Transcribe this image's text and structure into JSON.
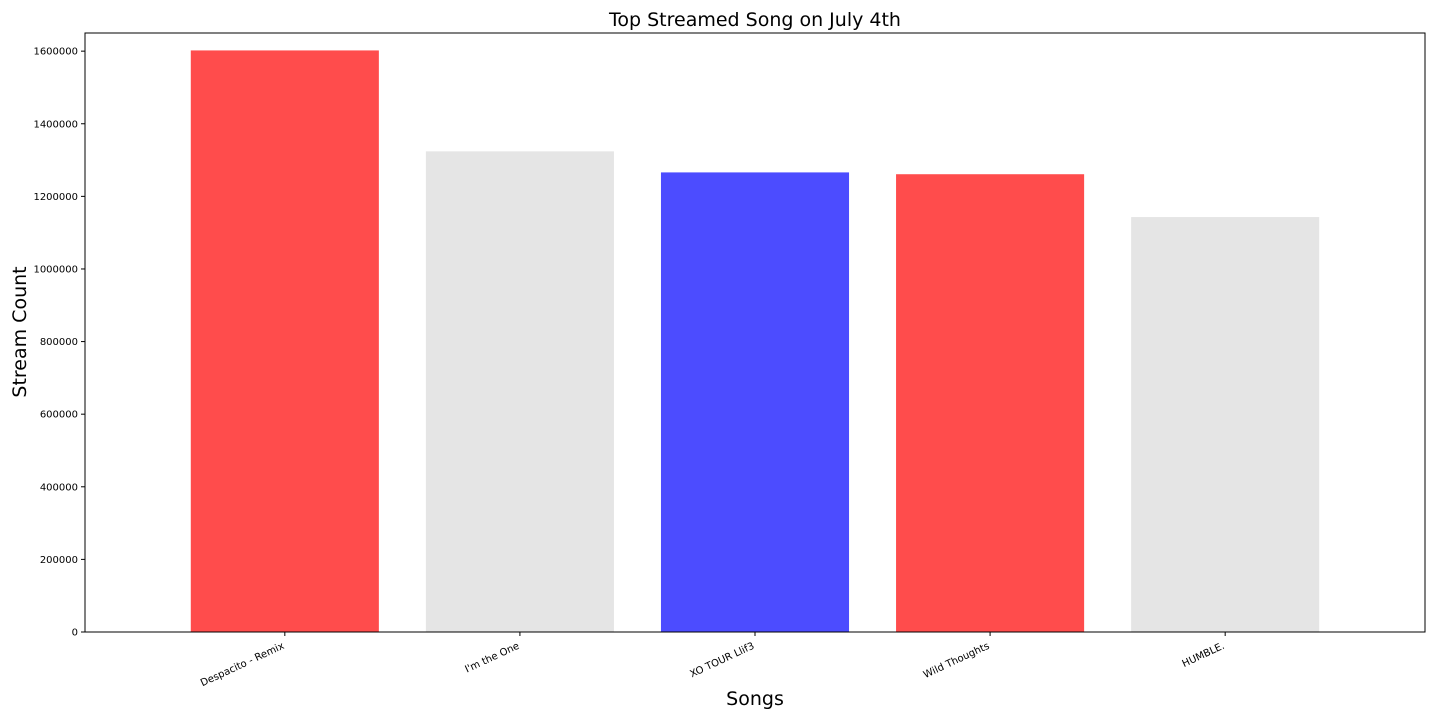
{
  "chart_data": {
    "type": "bar",
    "title": "Top Streamed Song on July 4th",
    "xlabel": "Songs",
    "ylabel": "Stream Count",
    "categories": [
      "Despacito - Remix",
      "I'm the One",
      "XO TOUR Llif3",
      "Wild Thoughts",
      "HUMBLE."
    ],
    "values": [
      1602000,
      1324000,
      1266000,
      1261000,
      1143000
    ],
    "bar_colors": [
      "#ff4c4c",
      "#e5e5e5",
      "#4c4cff",
      "#ff4c4c",
      "#e5e5e5"
    ],
    "ylim": [
      0,
      1650000
    ],
    "yticks": [
      0,
      200000,
      400000,
      600000,
      800000,
      1000000,
      1200000,
      1400000,
      1600000
    ],
    "ytick_labels": [
      "0",
      "200000",
      "400000",
      "600000",
      "800000",
      "1000000",
      "1200000",
      "1400000",
      "1600000"
    ],
    "grid": false,
    "legend": "none"
  }
}
